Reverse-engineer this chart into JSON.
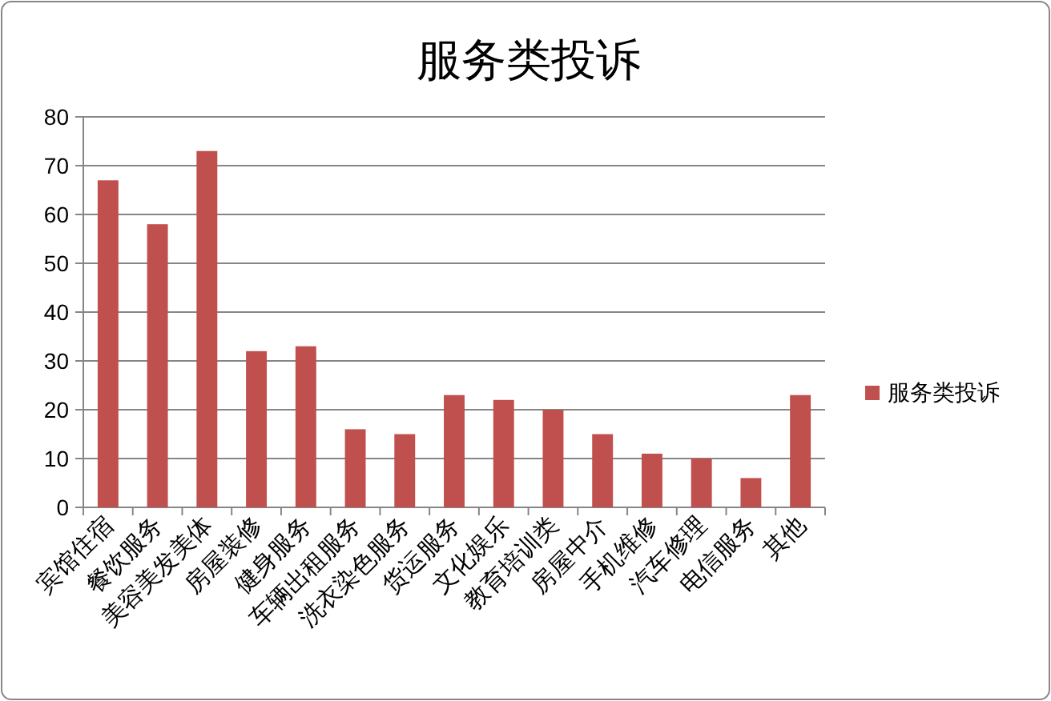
{
  "chart_data": {
    "type": "bar",
    "title": "服务类投诉",
    "categories": [
      "宾馆住宿",
      "餐饮服务",
      "美容美发美体",
      "房屋装修",
      "健身服务",
      "车辆出租服务",
      "洗衣染色服务",
      "货运服务",
      "文化娱乐",
      "教育培训类",
      "房屋中介",
      "手机维修",
      "汽车修理",
      "电信服务",
      "其他"
    ],
    "series": [
      {
        "name": "服务类投诉",
        "color": "#c0504d",
        "values": [
          67,
          58,
          73,
          32,
          33,
          16,
          15,
          23,
          22,
          20,
          15,
          11,
          10,
          6,
          23
        ]
      }
    ],
    "ylim": [
      0,
      80
    ],
    "yticks": [
      0,
      10,
      20,
      30,
      40,
      50,
      60,
      70,
      80
    ],
    "grid": "y",
    "legend": "right"
  }
}
